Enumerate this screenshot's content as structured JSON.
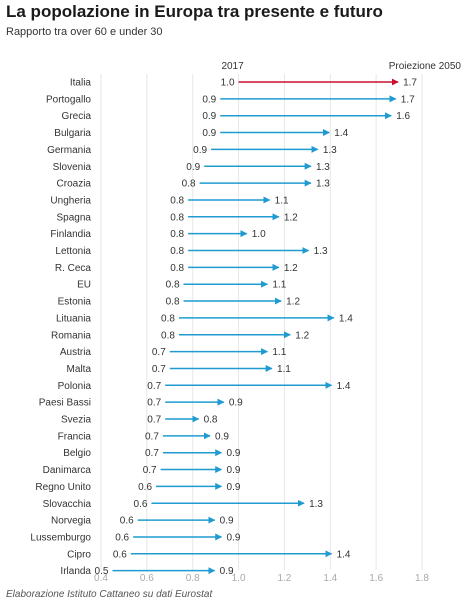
{
  "header": {
    "title": "La popolazione in Europa tra presente e futuro",
    "subtitle": "Rapporto tra over 60 e under 30"
  },
  "footer": {
    "source": "Elaborazione Istituto Cattaneo su dati Eurostat"
  },
  "colors": {
    "arrow": "#1f9bd1",
    "highlight": "#c8102e",
    "grid": "#e6e6e6",
    "label": "#333333",
    "tick": "#aaaaaa"
  },
  "chart_data": {
    "type": "arrow",
    "title": "La popolazione in Europa tra presente e futuro",
    "subtitle": "Rapporto tra over 60 e under 30",
    "start_label": "2017",
    "end_label": "Proiezione 2050",
    "xlim": [
      0.35,
      1.85
    ],
    "x_ticks": [
      0.4,
      0.6,
      0.8,
      1.0,
      1.2,
      1.4,
      1.6,
      1.8
    ],
    "grid": true,
    "highlight": "Italia",
    "categories": [
      "Italia",
      "Portogallo",
      "Grecia",
      "Bulgaria",
      "Germania",
      "Slovenia",
      "Croazia",
      "Ungheria",
      "Spagna",
      "Finlandia",
      "Lettonia",
      "R. Ceca",
      "EU",
      "Estonia",
      "Lituania",
      "Romania",
      "Austria",
      "Malta",
      "Polonia",
      "Paesi Bassi",
      "Svezia",
      "Francia",
      "Belgio",
      "Danimarca",
      "Regno Unito",
      "Slovacchia",
      "Norvegia",
      "Lussemburgo",
      "Cipro",
      "Irlanda"
    ],
    "series": [
      {
        "name": "2017",
        "values": [
          1.0,
          0.9,
          0.9,
          0.9,
          0.9,
          0.9,
          0.8,
          0.8,
          0.8,
          0.8,
          0.8,
          0.8,
          0.8,
          0.8,
          0.8,
          0.8,
          0.7,
          0.7,
          0.7,
          0.7,
          0.7,
          0.7,
          0.7,
          0.7,
          0.6,
          0.6,
          0.6,
          0.6,
          0.6,
          0.5
        ]
      },
      {
        "name": "Proiezione 2050",
        "values": [
          1.7,
          1.7,
          1.6,
          1.4,
          1.3,
          1.3,
          1.3,
          1.1,
          1.2,
          1.0,
          1.3,
          1.2,
          1.1,
          1.2,
          1.4,
          1.2,
          1.1,
          1.1,
          1.4,
          0.9,
          0.8,
          0.9,
          0.9,
          0.9,
          0.9,
          1.3,
          0.9,
          0.9,
          1.4,
          0.9
        ]
      }
    ],
    "start_positions": [
      1.0,
      0.92,
      0.92,
      0.92,
      0.88,
      0.85,
      0.83,
      0.78,
      0.78,
      0.78,
      0.78,
      0.78,
      0.76,
      0.76,
      0.74,
      0.74,
      0.7,
      0.7,
      0.68,
      0.68,
      0.68,
      0.67,
      0.67,
      0.66,
      0.64,
      0.62,
      0.56,
      0.54,
      0.53,
      0.45
    ],
    "end_positions": [
      1.7,
      1.69,
      1.67,
      1.4,
      1.35,
      1.32,
      1.32,
      1.14,
      1.18,
      1.04,
      1.31,
      1.18,
      1.13,
      1.19,
      1.42,
      1.23,
      1.13,
      1.15,
      1.41,
      0.94,
      0.83,
      0.88,
      0.93,
      0.93,
      0.93,
      1.29,
      0.9,
      0.93,
      1.41,
      0.9
    ]
  }
}
